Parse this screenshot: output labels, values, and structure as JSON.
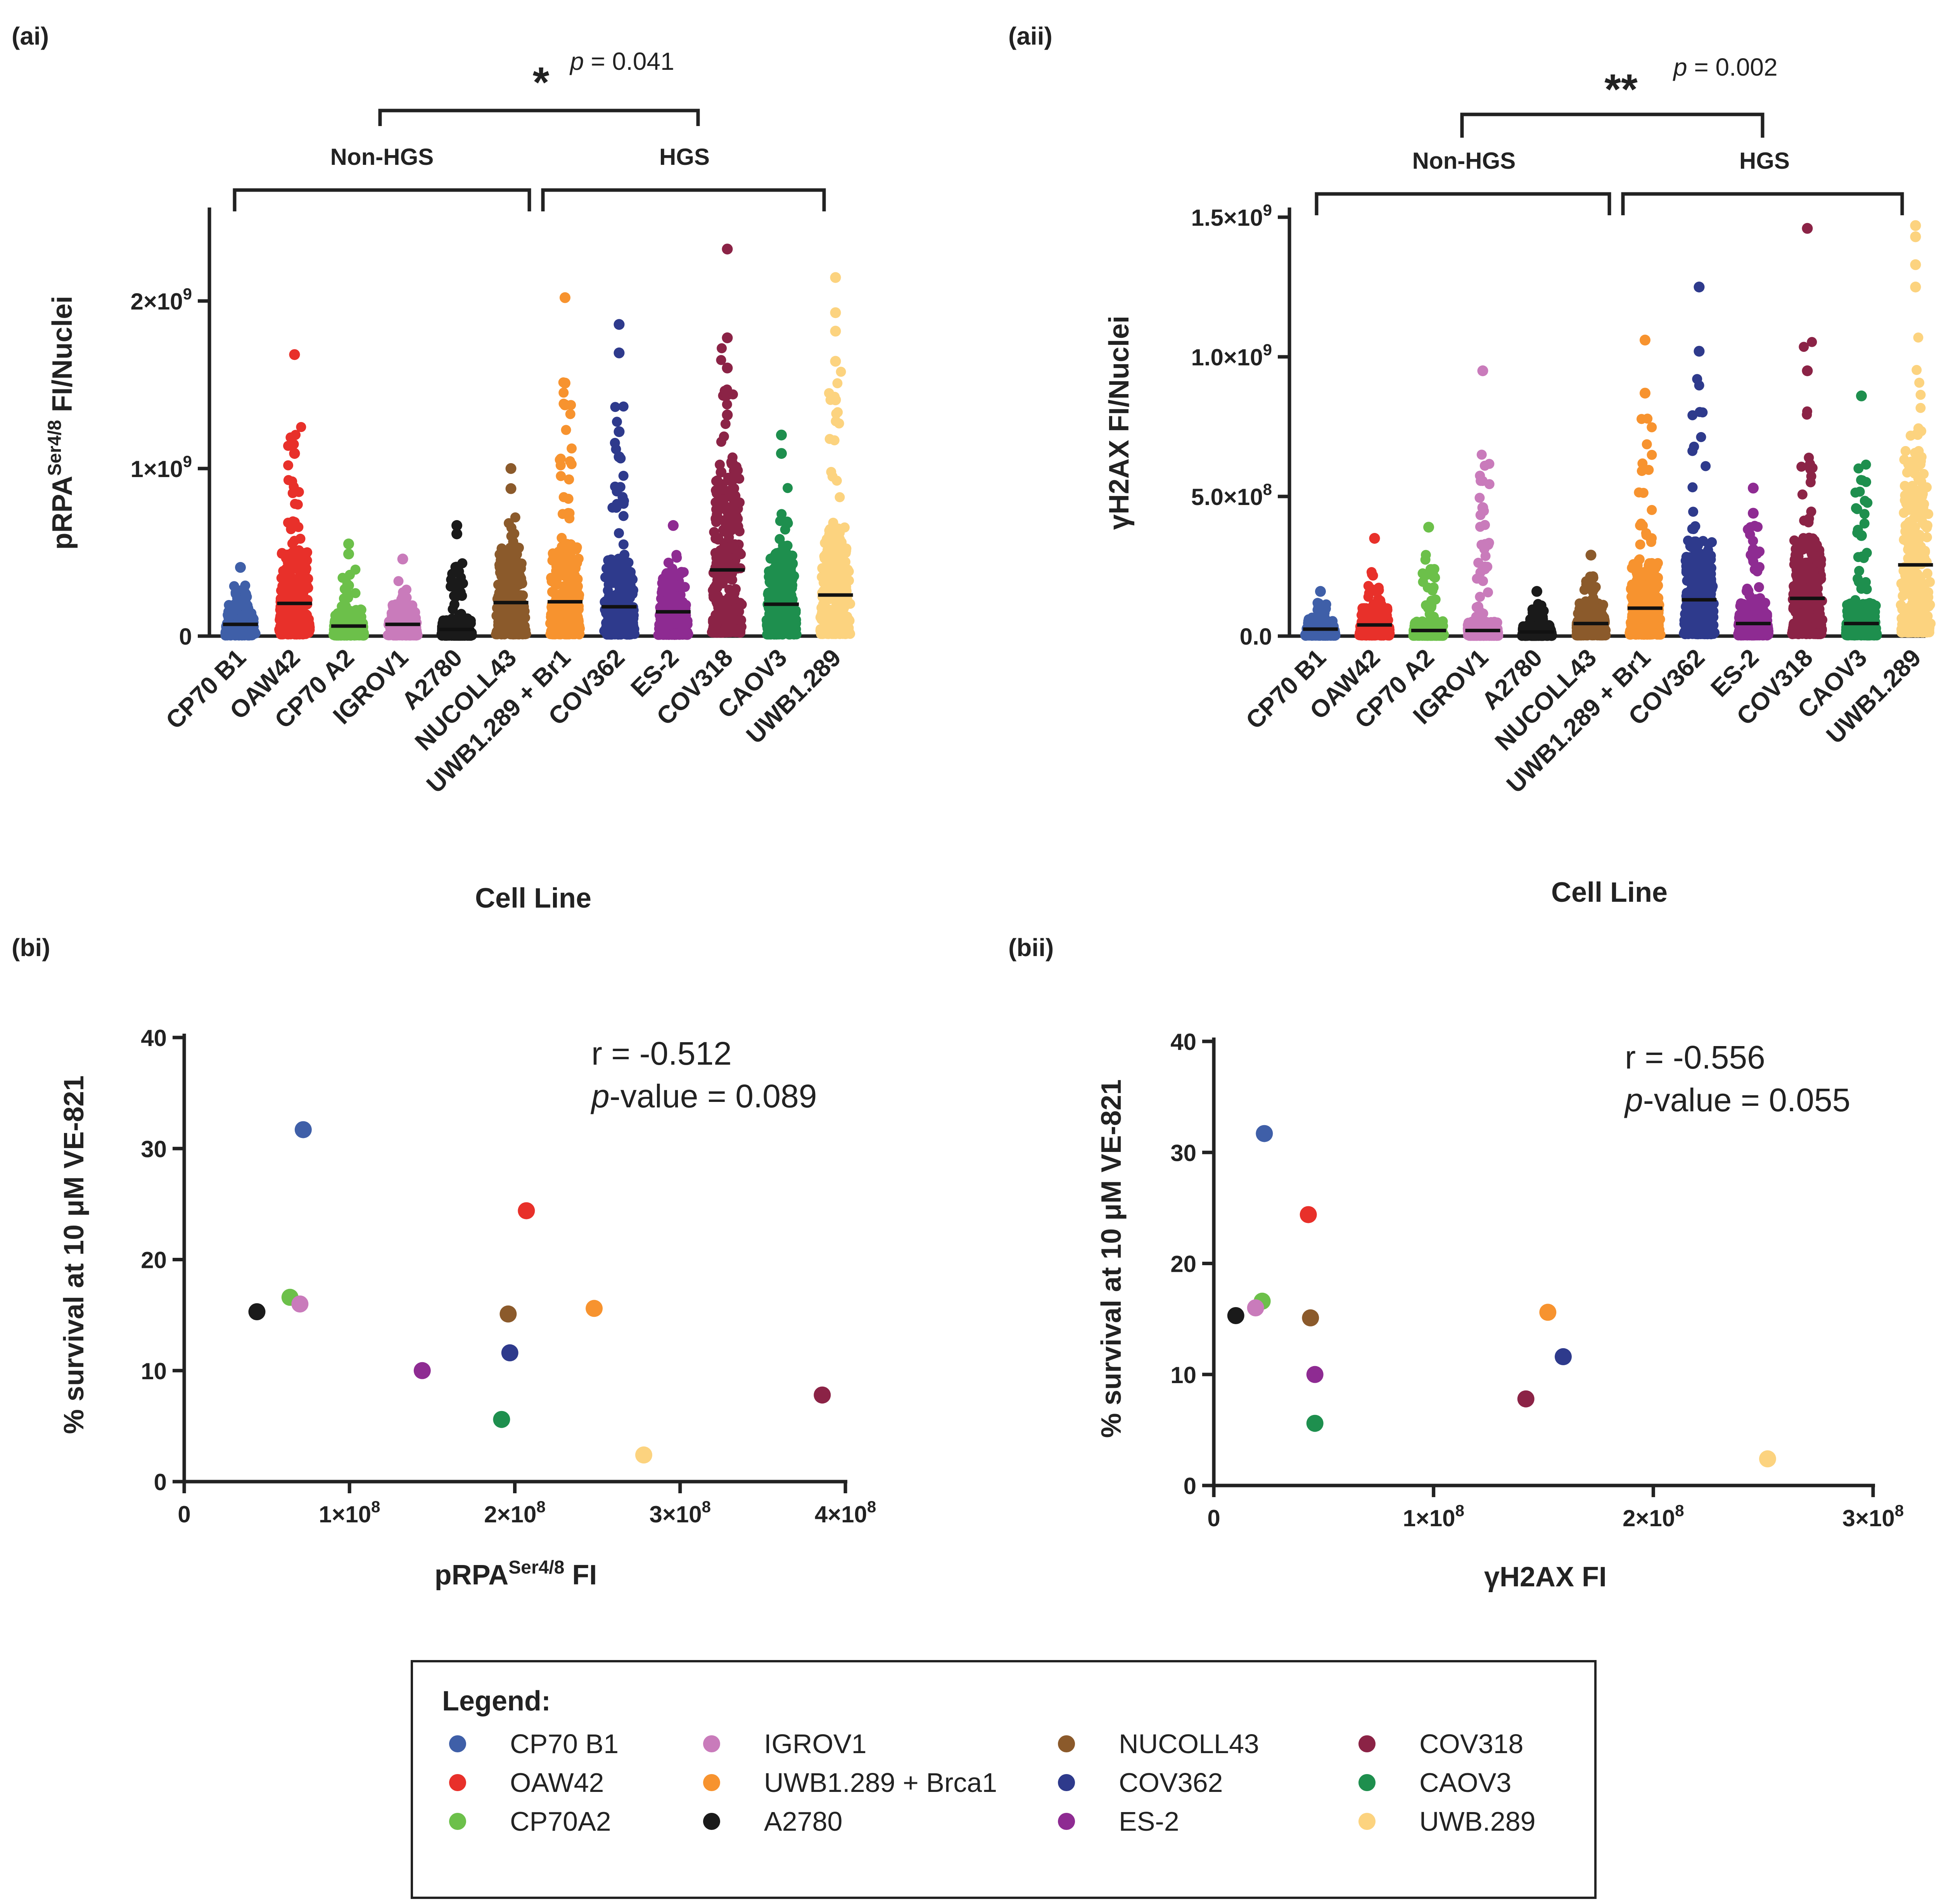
{
  "panels": {
    "ai": {
      "label": "(ai)",
      "significance": {
        "stars": "*",
        "p_prefix": "p",
        "p_rest": " = 0.041"
      },
      "group_labels": {
        "left": "Non-HGS",
        "right": "HGS"
      },
      "y_axis_title": {
        "main": "pRPA",
        "sup": "Ser4/8",
        "rest": " FI/Nuclei"
      },
      "x_axis_title": "Cell Line",
      "y_ticks": [
        {
          "value": 0,
          "label": "0"
        },
        {
          "value": 1000000000,
          "label": "1×10",
          "sup": "9"
        },
        {
          "value": 2000000000,
          "label": "2×10",
          "sup": "9"
        }
      ]
    },
    "aii": {
      "label": "(aii)",
      "significance": {
        "stars": "**",
        "p_prefix": "p",
        "p_rest": " = 0.002"
      },
      "group_labels": {
        "left": "Non-HGS",
        "right": "HGS"
      },
      "y_axis_title": {
        "main": "γH2AX FI/Nuclei"
      },
      "x_axis_title": "Cell Line",
      "y_ticks": [
        {
          "value": 0,
          "label": "0.0"
        },
        {
          "value": 500000000,
          "label": "5.0×10",
          "sup": "8"
        },
        {
          "value": 1000000000,
          "label": "1.0×10",
          "sup": "9"
        },
        {
          "value": 1500000000,
          "label": "1.5×10",
          "sup": "9"
        }
      ]
    },
    "bi": {
      "label": "(bi)",
      "stats": {
        "r": "r = -0.512",
        "p_prefix": "p",
        "p_rest": "-value = 0.089"
      },
      "y_axis_title": "% survival at 10 μM VE-821",
      "x_axis_title": {
        "main": "pRPA",
        "sup": "Ser4/8",
        "rest": " FI"
      },
      "y_ticks": [
        "0",
        "10",
        "20",
        "30",
        "40"
      ],
      "x_ticks": [
        {
          "value": 0,
          "label": "0"
        },
        {
          "value": 100000000,
          "label": "1×10",
          "sup": "8"
        },
        {
          "value": 200000000,
          "label": "2×10",
          "sup": "8"
        },
        {
          "value": 300000000,
          "label": "3×10",
          "sup": "8"
        },
        {
          "value": 400000000,
          "label": "4×10",
          "sup": "8"
        }
      ]
    },
    "bii": {
      "label": "(bii)",
      "stats": {
        "r": "r = -0.556",
        "p_prefix": "p",
        "p_rest": "-value = 0.055"
      },
      "y_axis_title": "% survival at 10 μM VE-821",
      "x_axis_title": {
        "main": "γH2AX FI"
      },
      "y_ticks": [
        "0",
        "10",
        "20",
        "30",
        "40"
      ],
      "x_ticks": [
        {
          "value": 0,
          "label": "0"
        },
        {
          "value": 100000000,
          "label": "1×10",
          "sup": "8"
        },
        {
          "value": 200000000,
          "label": "2×10",
          "sup": "8"
        },
        {
          "value": 300000000,
          "label": "3×10",
          "sup": "8"
        }
      ]
    }
  },
  "legend": {
    "title": "Legend:",
    "items": [
      {
        "label": "CP70 B1",
        "color": "#3f5fa8"
      },
      {
        "label": "OAW42",
        "color": "#e8302a"
      },
      {
        "label": "CP70A2",
        "color": "#6cc04a"
      },
      {
        "label": "IGROV1",
        "color": "#c97bbb"
      },
      {
        "label": "UWB1.289 + Brca1",
        "color": "#f7932f"
      },
      {
        "label": "A2780",
        "color": "#1a1a1a"
      },
      {
        "label": "NUCOLL43",
        "color": "#8b5a2b"
      },
      {
        "label": "COV362",
        "color": "#2e3a8c"
      },
      {
        "label": "ES-2",
        "color": "#8e2b92"
      },
      {
        "label": "COV318",
        "color": "#8b2346"
      },
      {
        "label": "CAOV3",
        "color": "#1e8f4e"
      },
      {
        "label": "UWB.289",
        "color": "#fcd37f"
      }
    ]
  },
  "chart_data": [
    {
      "id": "ai",
      "type": "scatter",
      "subtype": "strip",
      "title": "",
      "xlabel": "Cell Line",
      "ylabel": "pRPA Ser4/8 FI/Nuclei",
      "ylim": [
        0,
        2500000000
      ],
      "categories": [
        "CP70 B1",
        "OAW42",
        "CP70 A2",
        "IGROV1",
        "A2780",
        "NUCOLL43",
        "UWB1.289 + Br1",
        "COV362",
        "ES-2",
        "COV318",
        "CAOV3",
        "UWB1.289"
      ],
      "colors": [
        "#3f5fa8",
        "#e8302a",
        "#6cc04a",
        "#c97bbb",
        "#1a1a1a",
        "#8b5a2b",
        "#f7932f",
        "#2e3a8c",
        "#8e2b92",
        "#8b2346",
        "#1e8f4e",
        "#fcd37f"
      ],
      "medians": [
        70000000,
        195000000,
        60000000,
        70000000,
        40000000,
        200000000,
        205000000,
        175000000,
        145000000,
        395000000,
        190000000,
        245000000
      ],
      "maxima": [
        410000000,
        1680000000,
        550000000,
        460000000,
        660000000,
        1000000000,
        2020000000,
        1860000000,
        660000000,
        2310000000,
        1200000000,
        2140000000
      ],
      "outliers": [
        [
          410000000
        ],
        [
          1680000000,
          1090000000
        ],
        [
          550000000,
          490000000
        ],
        [
          460000000
        ],
        [
          660000000,
          610000000
        ],
        [
          1000000000,
          880000000
        ],
        [
          2020000000,
          1510000000,
          1380000000
        ],
        [
          1860000000,
          1690000000,
          1220000000,
          1070000000
        ],
        [
          660000000
        ],
        [
          2310000000,
          1780000000,
          1600000000,
          1440000000,
          1320000000
        ],
        [
          1200000000,
          1090000000
        ],
        [
          2140000000,
          1930000000,
          1820000000,
          1640000000,
          1410000000
        ]
      ],
      "comparison": {
        "groups": [
          "Non-HGS",
          "HGS"
        ],
        "stars": "*",
        "p": 0.041
      }
    },
    {
      "id": "aii",
      "type": "scatter",
      "subtype": "strip",
      "title": "",
      "xlabel": "Cell Line",
      "ylabel": "γH2AX FI/Nuclei",
      "ylim": [
        0,
        1500000000
      ],
      "categories": [
        "CP70 B1",
        "OAW42",
        "CP70 A2",
        "IGROV1",
        "A2780",
        "NUCOLL43",
        "UWB1.289 + Br1",
        "COV362",
        "ES-2",
        "COV318",
        "CAOV3",
        "UWB1.289"
      ],
      "colors": [
        "#3f5fa8",
        "#e8302a",
        "#6cc04a",
        "#c97bbb",
        "#1a1a1a",
        "#8b5a2b",
        "#f7932f",
        "#2e3a8c",
        "#8e2b92",
        "#8b2346",
        "#1e8f4e",
        "#fcd37f"
      ],
      "medians": [
        25000000,
        40000000,
        20000000,
        20000000,
        15000000,
        45000000,
        100000000,
        130000000,
        45000000,
        135000000,
        45000000,
        255000000
      ],
      "maxima": [
        160000000,
        350000000,
        390000000,
        950000000,
        160000000,
        290000000,
        1060000000,
        1250000000,
        530000000,
        1460000000,
        860000000,
        1470000000
      ],
      "outliers": [
        [
          160000000
        ],
        [
          350000000
        ],
        [
          390000000
        ],
        [
          950000000,
          460000000
        ],
        [
          160000000
        ],
        [
          290000000
        ],
        [
          1060000000,
          870000000
        ],
        [
          1250000000,
          1020000000
        ],
        [
          530000000,
          440000000,
          310000000
        ],
        [
          1460000000,
          950000000
        ],
        [
          860000000,
          360000000
        ],
        [
          1470000000,
          1430000000,
          1330000000,
          1250000000
        ]
      ],
      "comparison": {
        "groups": [
          "Non-HGS",
          "HGS"
        ],
        "stars": "**",
        "p": 0.002
      }
    },
    {
      "id": "bi",
      "type": "scatter",
      "title": "",
      "xlabel": "pRPA Ser4/8 FI",
      "ylabel": "% survival at 10 μM VE-821",
      "xlim": [
        0,
        400000000
      ],
      "ylim": [
        0,
        40
      ],
      "r": -0.512,
      "p_value": 0.089,
      "points": [
        {
          "name": "CP70 B1",
          "x": 72000000,
          "y": 31.7,
          "color": "#3f5fa8"
        },
        {
          "name": "OAW42",
          "x": 207000000,
          "y": 24.4,
          "color": "#e8302a"
        },
        {
          "name": "CP70A2",
          "x": 64000000,
          "y": 16.6,
          "color": "#6cc04a"
        },
        {
          "name": "IGROV1",
          "x": 70000000,
          "y": 16.0,
          "color": "#c97bbb"
        },
        {
          "name": "A2780",
          "x": 44000000,
          "y": 15.3,
          "color": "#1a1a1a"
        },
        {
          "name": "NUCOLL43",
          "x": 196000000,
          "y": 15.1,
          "color": "#8b5a2b"
        },
        {
          "name": "UWB1.289 + Brca1",
          "x": 248000000,
          "y": 15.6,
          "color": "#f7932f"
        },
        {
          "name": "COV362",
          "x": 197000000,
          "y": 11.6,
          "color": "#2e3a8c"
        },
        {
          "name": "ES-2",
          "x": 144000000,
          "y": 10.0,
          "color": "#8e2b92"
        },
        {
          "name": "CAOV3",
          "x": 192000000,
          "y": 5.6,
          "color": "#1e8f4e"
        },
        {
          "name": "UWB.289",
          "x": 278000000,
          "y": 2.4,
          "color": "#fcd37f"
        },
        {
          "name": "COV318",
          "x": 386000000,
          "y": 7.8,
          "color": "#8b2346"
        }
      ]
    },
    {
      "id": "bii",
      "type": "scatter",
      "title": "",
      "xlabel": "γH2AX FI",
      "ylabel": "% survival at 10 μM VE-821",
      "xlim": [
        0,
        300000000
      ],
      "ylim": [
        0,
        40
      ],
      "r": -0.556,
      "p_value": 0.055,
      "points": [
        {
          "name": "CP70 B1",
          "x": 23000000,
          "y": 31.7,
          "color": "#3f5fa8"
        },
        {
          "name": "OAW42",
          "x": 43000000,
          "y": 24.4,
          "color": "#e8302a"
        },
        {
          "name": "CP70A2",
          "x": 22000000,
          "y": 16.6,
          "color": "#6cc04a"
        },
        {
          "name": "IGROV1",
          "x": 19000000,
          "y": 16.0,
          "color": "#c97bbb"
        },
        {
          "name": "A2780",
          "x": 10000000,
          "y": 15.3,
          "color": "#1a1a1a"
        },
        {
          "name": "NUCOLL43",
          "x": 44000000,
          "y": 15.1,
          "color": "#8b5a2b"
        },
        {
          "name": "UWB1.289 + Brca1",
          "x": 152000000,
          "y": 15.6,
          "color": "#f7932f"
        },
        {
          "name": "COV362",
          "x": 159000000,
          "y": 11.6,
          "color": "#2e3a8c"
        },
        {
          "name": "ES-2",
          "x": 46000000,
          "y": 10.0,
          "color": "#8e2b92"
        },
        {
          "name": "CAOV3",
          "x": 46000000,
          "y": 5.6,
          "color": "#1e8f4e"
        },
        {
          "name": "COV318",
          "x": 142000000,
          "y": 7.8,
          "color": "#8b2346"
        },
        {
          "name": "UWB.289",
          "x": 252000000,
          "y": 2.4,
          "color": "#fcd37f"
        }
      ]
    }
  ]
}
